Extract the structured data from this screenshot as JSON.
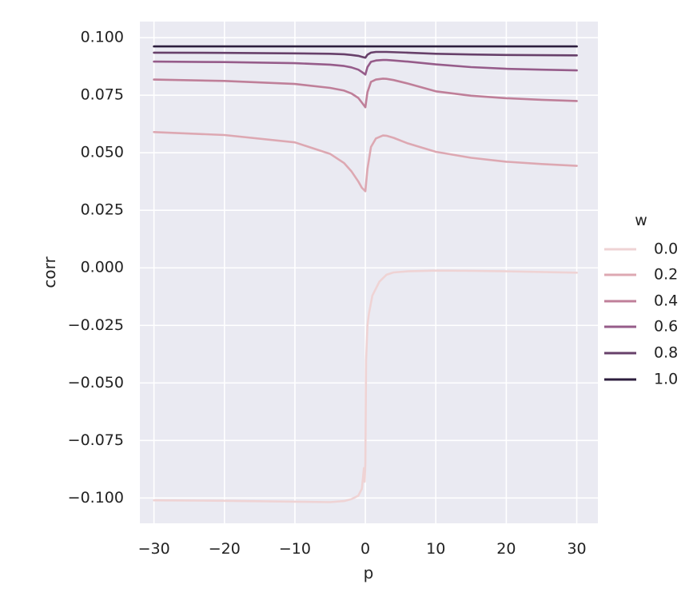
{
  "chart_data": {
    "type": "line",
    "title": "",
    "xlabel": "p",
    "ylabel": "corr",
    "xlim": [
      -32,
      33
    ],
    "ylim": [
      -0.111,
      0.107
    ],
    "xticks": [
      -30,
      -20,
      -10,
      0,
      10,
      20,
      30
    ],
    "xtick_labels": [
      "−30",
      "−20",
      "−10",
      "0",
      "10",
      "20",
      "30"
    ],
    "yticks": [
      0.1,
      0.075,
      0.05,
      0.025,
      0.0,
      -0.025,
      -0.05,
      -0.075,
      -0.1
    ],
    "ytick_labels": [
      "0.100",
      "0.075",
      "0.050",
      "0.025",
      "0.000",
      "−0.025",
      "−0.050",
      "−0.075",
      "−0.100"
    ],
    "grid": true,
    "legend": {
      "title": "w",
      "placement": "right"
    },
    "background_color": "#eaeaf2",
    "grid_color": "#ffffff",
    "series": [
      {
        "name": "0.0",
        "color": "#efd3d4",
        "x": [
          -30,
          -20,
          -10,
          -5,
          -3,
          -2,
          -1,
          -0.5,
          -0.2,
          -0.1,
          0,
          0.1,
          0.3,
          0.5,
          1,
          2,
          3,
          4,
          6,
          10,
          15,
          20,
          25,
          30
        ],
        "y": [
          -0.101,
          -0.1012,
          -0.1016,
          -0.1018,
          -0.1013,
          -0.1005,
          -0.099,
          -0.096,
          -0.087,
          -0.093,
          -0.085,
          -0.04,
          -0.025,
          -0.02,
          -0.012,
          -0.006,
          -0.003,
          -0.002,
          -0.0015,
          -0.0012,
          -0.0013,
          -0.0015,
          -0.0018,
          -0.0021
        ]
      },
      {
        "name": "0.2",
        "color": "#dda8b2",
        "x": [
          -30,
          -20,
          -10,
          -5,
          -3,
          -2,
          -1,
          -0.5,
          0,
          0.3,
          0.8,
          1.5,
          2.5,
          3,
          4,
          6,
          10,
          15,
          20,
          25,
          30
        ],
        "y": [
          0.059,
          0.0577,
          0.0545,
          0.0495,
          0.0455,
          0.042,
          0.0375,
          0.0348,
          0.0333,
          0.043,
          0.0525,
          0.0562,
          0.0575,
          0.0574,
          0.0565,
          0.0541,
          0.0504,
          0.0478,
          0.0461,
          0.0451,
          0.0443
        ]
      },
      {
        "name": "0.4",
        "color": "#bf7f99",
        "x": [
          -30,
          -20,
          -10,
          -5,
          -3,
          -2,
          -1,
          -0.5,
          0,
          0.3,
          0.8,
          1.5,
          2.5,
          3,
          4,
          6,
          10,
          15,
          20,
          25,
          30
        ],
        "y": [
          0.0818,
          0.0812,
          0.0799,
          0.0782,
          0.077,
          0.0758,
          0.0738,
          0.0718,
          0.0698,
          0.0763,
          0.0808,
          0.0818,
          0.0822,
          0.0821,
          0.0816,
          0.0801,
          0.0767,
          0.0748,
          0.0737,
          0.073,
          0.0725
        ]
      },
      {
        "name": "0.6",
        "color": "#965c8a",
        "x": [
          -30,
          -20,
          -10,
          -5,
          -3,
          -2,
          -1,
          -0.5,
          0,
          0.3,
          0.8,
          1.5,
          2.5,
          3,
          4,
          6,
          10,
          15,
          20,
          25,
          30
        ],
        "y": [
          0.0896,
          0.0894,
          0.0889,
          0.0883,
          0.0877,
          0.0871,
          0.0861,
          0.0851,
          0.084,
          0.0872,
          0.0895,
          0.0901,
          0.0903,
          0.0903,
          0.0901,
          0.0896,
          0.0884,
          0.0872,
          0.0865,
          0.0861,
          0.0858
        ]
      },
      {
        "name": "0.8",
        "color": "#67406a",
        "x": [
          -30,
          -20,
          -10,
          -5,
          -3,
          -2,
          -1,
          -0.5,
          0,
          0.3,
          0.8,
          1.5,
          3,
          6,
          10,
          15,
          20,
          25,
          30
        ],
        "y": [
          0.0935,
          0.0934,
          0.0932,
          0.093,
          0.0928,
          0.0925,
          0.0921,
          0.0917,
          0.0913,
          0.0926,
          0.0935,
          0.0938,
          0.0938,
          0.0935,
          0.093,
          0.0927,
          0.0925,
          0.0924,
          0.0923
        ]
      },
      {
        "name": "1.0",
        "color": "#2d1e3e",
        "x": [
          -30,
          30
        ],
        "y": [
          0.0962,
          0.0962
        ]
      }
    ]
  }
}
